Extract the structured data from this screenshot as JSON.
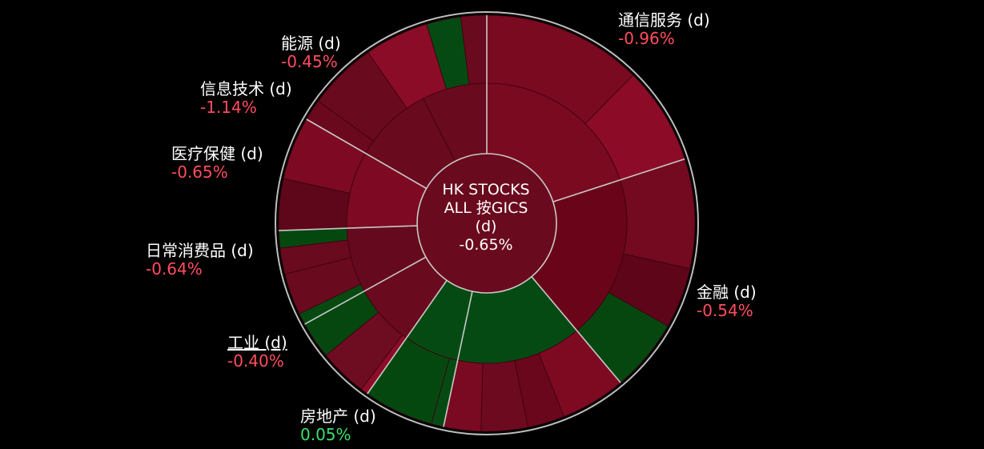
{
  "center": {
    "line1": "HK STOCKS",
    "line2": "ALL 按GICS",
    "line3": "(d)",
    "value": "-0.65%"
  },
  "colors": {
    "background": "#000000",
    "negative_text": "#ff4d5e",
    "positive_text": "#39e06a",
    "label_text": "#ffffff",
    "outer_ring": "#bdbdbd"
  },
  "chart_data": {
    "type": "sunburst",
    "title": "HK STOCKS ALL 按GICS (d)",
    "total_change_pct": -0.65,
    "sectors": [
      {
        "name": "通信服务 (d)",
        "change": "-0.96%",
        "color": "#7a0a20"
      },
      {
        "name": "金融 (d)",
        "change": "-0.54%",
        "color": "#6a0519"
      },
      {
        "name": "房地产 (d)",
        "change": "0.05%",
        "color": "#054a12"
      },
      {
        "name": "工业 (d)",
        "change": "-0.40%",
        "color": "#6e0c22"
      },
      {
        "name": "日常消费品 (d)",
        "change": "-0.64%",
        "color": "#6a0a1e"
      },
      {
        "name": "医疗保健 (d)",
        "change": "-0.65%",
        "color": "#650a1e"
      },
      {
        "name": "信息技术 (d)",
        "change": "-1.14%",
        "color": "#7d0a22"
      },
      {
        "name": "能源 (d)",
        "change": "-0.45%",
        "color": "#6a0a1e"
      }
    ]
  }
}
